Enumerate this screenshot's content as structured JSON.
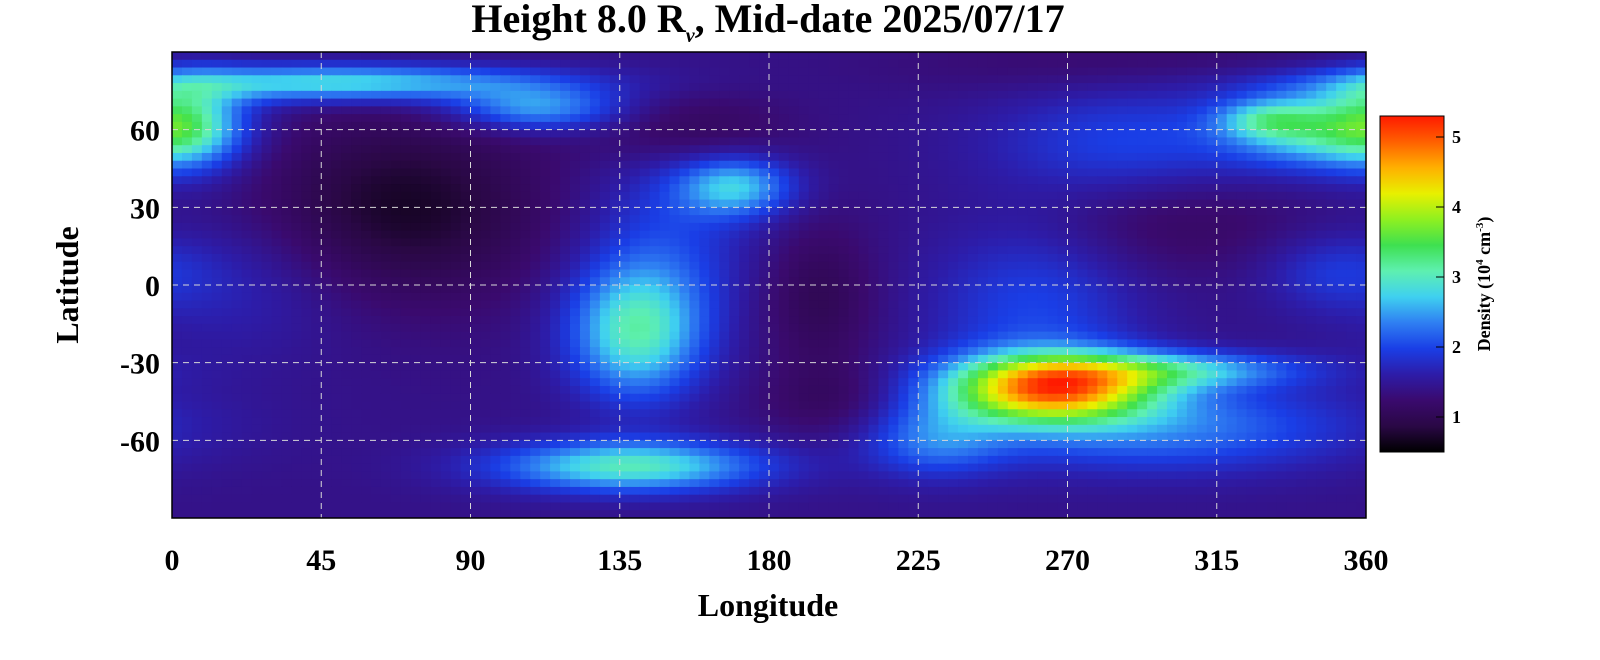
{
  "chart_data": {
    "type": "heatmap",
    "title": {
      "prefix": "Height 8.0 R",
      "subscript": "ν",
      "suffix": ", Mid-date 2025/07/17"
    },
    "xlabel": "Longitude",
    "ylabel": "Latitude",
    "xlim": [
      0,
      360
    ],
    "ylim": [
      -90,
      90
    ],
    "x_ticks": [
      0,
      45,
      90,
      135,
      180,
      225,
      270,
      315,
      360
    ],
    "y_ticks": [
      60,
      30,
      0,
      -30,
      -60
    ],
    "y_tick_labels": [
      "60",
      "30",
      "0",
      "-30",
      "-60"
    ],
    "grid": true,
    "colorbar": {
      "label_prefix": "Density (10",
      "label_exp1": "4",
      "label_mid": " cm",
      "label_exp2": "-3",
      "label_suffix": ")",
      "range": [
        0.5,
        5.3
      ],
      "ticks": [
        1,
        2,
        3,
        4,
        5
      ],
      "colors": [
        "#000000",
        "#2a0845",
        "#3a0a6e",
        "#2d1ca8",
        "#1a3ee6",
        "#2f7ff2",
        "#3fd0f0",
        "#5ef0b0",
        "#3ee050",
        "#8ff020",
        "#e8f000",
        "#ffb000",
        "#ff6000",
        "#ff1a00"
      ]
    },
    "background_level": 1.4,
    "features": [
      {
        "lon": 70,
        "lat": 30,
        "slon": 30,
        "slat": 25,
        "amp": -0.7
      },
      {
        "lon": 155,
        "lat": 60,
        "slon": 20,
        "slat": 10,
        "amp": -0.4
      },
      {
        "lon": 195,
        "lat": -5,
        "slon": 12,
        "slat": 20,
        "amp": -0.4
      },
      {
        "lon": 200,
        "lat": -45,
        "slon": 15,
        "slat": 10,
        "amp": -0.3
      },
      {
        "lon": 300,
        "lat": 25,
        "slon": 30,
        "slat": 15,
        "amp": -0.3
      },
      {
        "lon": 290,
        "lat": 85,
        "slon": 50,
        "slat": 8,
        "amp": -0.2
      },
      {
        "lon": 50,
        "lat": 78,
        "slon": 45,
        "slat": 5,
        "amp": 1.5
      },
      {
        "lon": 110,
        "lat": 68,
        "slon": 18,
        "slat": 6,
        "amp": 1.1
      },
      {
        "lon": 5,
        "lat": 62,
        "slon": 12,
        "slat": 12,
        "amp": 1.4
      },
      {
        "lon": 345,
        "lat": 60,
        "slon": 18,
        "slat": 10,
        "amp": 1.4
      },
      {
        "lon": 330,
        "lat": 64,
        "slon": 10,
        "slat": 5,
        "amp": 0.8
      },
      {
        "lon": 290,
        "lat": 55,
        "slon": 30,
        "slat": 15,
        "amp": 0.6
      },
      {
        "lon": 170,
        "lat": 38,
        "slon": 12,
        "slat": 8,
        "amp": 1.2
      },
      {
        "lon": 140,
        "lat": -18,
        "slon": 14,
        "slat": 18,
        "amp": 1.6
      },
      {
        "lon": 150,
        "lat": 20,
        "slon": 18,
        "slat": 25,
        "amp": 0.5
      },
      {
        "lon": 138,
        "lat": -70,
        "slon": 28,
        "slat": 7,
        "amp": 1.6
      },
      {
        "lon": 265,
        "lat": -40,
        "slon": 22,
        "slat": 9,
        "amp": 3.1
      },
      {
        "lon": 300,
        "lat": -33,
        "slon": 28,
        "slat": 5,
        "amp": 1.2
      },
      {
        "lon": 260,
        "lat": -10,
        "slon": 22,
        "slat": 25,
        "amp": 0.6
      },
      {
        "lon": 300,
        "lat": -55,
        "slon": 40,
        "slat": 12,
        "amp": 0.9
      },
      {
        "lon": 230,
        "lat": -60,
        "slon": 15,
        "slat": 10,
        "amp": 0.8
      },
      {
        "lon": 20,
        "lat": 0,
        "slon": 25,
        "slat": 20,
        "amp": 0.3
      },
      {
        "lon": 350,
        "lat": 5,
        "slon": 15,
        "slat": 10,
        "amp": 0.4
      }
    ]
  }
}
